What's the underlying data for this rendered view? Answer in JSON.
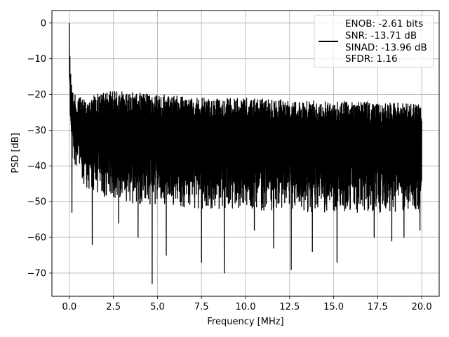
{
  "chart_data": {
    "type": "line",
    "title": "",
    "xlabel": "Frequency [MHz]",
    "ylabel": "PSD [dB]",
    "xlim": [
      -0.99,
      20.99
    ],
    "ylim": [
      -76.5,
      3.5
    ],
    "grid": true,
    "line_color": "#000000",
    "x_ticks": [
      0.0,
      2.5,
      5.0,
      7.5,
      10.0,
      12.5,
      15.0,
      17.5,
      20.0
    ],
    "x_tick_labels": [
      "0.0",
      "2.5",
      "5.0",
      "7.5",
      "10.0",
      "12.5",
      "15.0",
      "17.5",
      "20.0"
    ],
    "y_ticks": [
      0,
      -10,
      -20,
      -30,
      -40,
      -50,
      -60,
      -70
    ],
    "y_tick_labels": [
      "0",
      "−10",
      "−20",
      "−30",
      "−40",
      "−50",
      "−60",
      "−70"
    ],
    "legend": {
      "placement": "top-right",
      "entries": [
        "ENOB: -2.61 bits",
        "SNR: -13.71 dB",
        "SINAD: -13.96 dB",
        "SFDR: 1.16"
      ]
    },
    "series": [
      {
        "x_start": 0.0,
        "x_end": 20.0,
        "peak": {
          "x": 0.0,
          "y": 0
        },
        "early_decay": [
          [
            0.0,
            0
          ],
          [
            0.03,
            -8
          ],
          [
            0.08,
            -13
          ],
          [
            0.15,
            -17
          ],
          [
            0.3,
            -20
          ],
          [
            0.6,
            -21
          ]
        ],
        "upper_envelope": [
          [
            0.5,
            -21
          ],
          [
            2.5,
            -19
          ],
          [
            5.0,
            -20
          ],
          [
            7.5,
            -21
          ],
          [
            10.0,
            -21
          ],
          [
            12.5,
            -21.5
          ],
          [
            15.0,
            -22
          ],
          [
            17.5,
            -22
          ],
          [
            20.0,
            -22.5
          ]
        ],
        "lower_envelope": [
          [
            0.5,
            -45
          ],
          [
            2.5,
            -50
          ],
          [
            5.0,
            -51
          ],
          [
            7.5,
            -52
          ],
          [
            10.0,
            -52
          ],
          [
            12.5,
            -53
          ],
          [
            15.0,
            -53
          ],
          [
            17.5,
            -53
          ],
          [
            20.0,
            -53
          ]
        ],
        "deep_dips": [
          [
            0.15,
            -53
          ],
          [
            1.3,
            -62
          ],
          [
            2.8,
            -56
          ],
          [
            3.9,
            -60
          ],
          [
            4.7,
            -73
          ],
          [
            5.5,
            -65
          ],
          [
            7.5,
            -67
          ],
          [
            8.8,
            -70
          ],
          [
            10.5,
            -58
          ],
          [
            11.6,
            -63
          ],
          [
            12.6,
            -69
          ],
          [
            13.8,
            -64
          ],
          [
            15.2,
            -67
          ],
          [
            17.3,
            -60
          ],
          [
            18.3,
            -61
          ],
          [
            19.0,
            -60
          ],
          [
            19.9,
            -58
          ]
        ]
      }
    ]
  }
}
